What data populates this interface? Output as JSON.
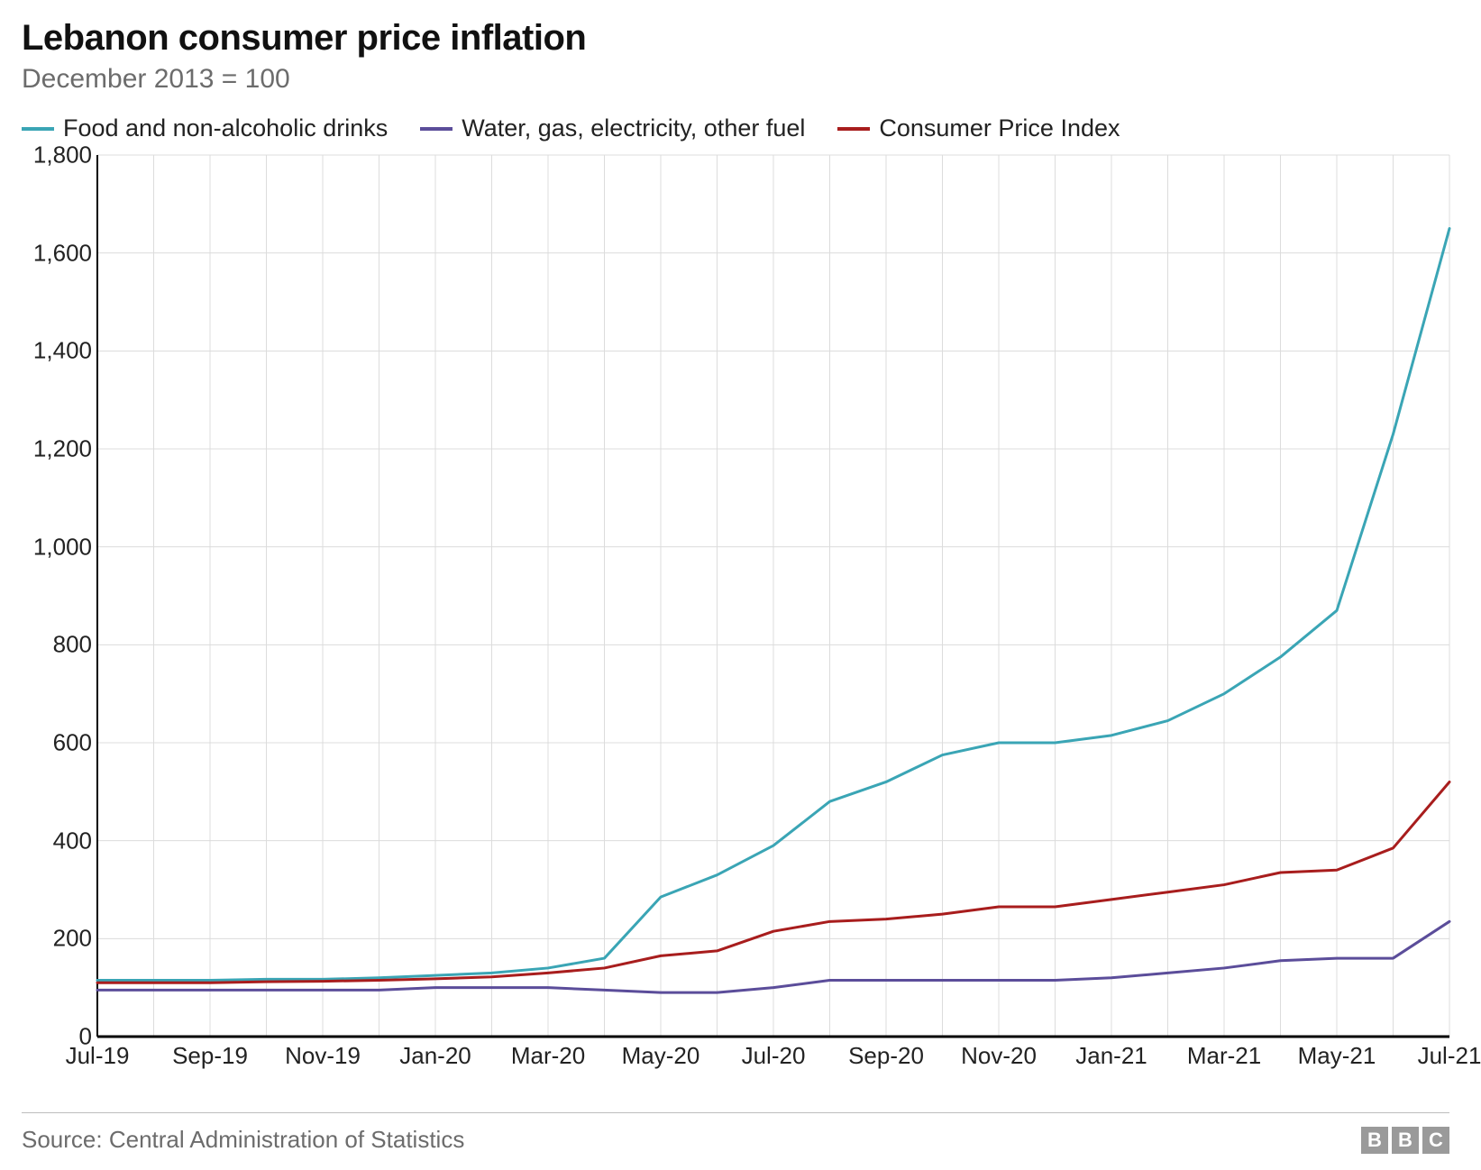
{
  "title": "Lebanon consumer price inflation",
  "subtitle": "December 2013 = 100",
  "source_label": "Source: Central Administration of Statistics",
  "logo_letters": [
    "B",
    "B",
    "C"
  ],
  "chart": {
    "type": "line",
    "background_color": "#ffffff",
    "grid_color": "#dcdcdc",
    "axis_color": "#000000",
    "line_width": 3,
    "y": {
      "min": 0,
      "max": 1800,
      "tick_step": 200,
      "ticks": [
        0,
        200,
        400,
        600,
        800,
        1000,
        1200,
        1400,
        1600,
        1800
      ]
    },
    "x": {
      "min": 0,
      "max": 24,
      "tick_positions": [
        0,
        2,
        4,
        6,
        8,
        10,
        12,
        14,
        16,
        18,
        20,
        22,
        24
      ],
      "tick_labels": [
        "Jul-19",
        "Sep-19",
        "Nov-19",
        "Jan-20",
        "Mar-20",
        "May-20",
        "Jul-20",
        "Sep-20",
        "Nov-20",
        "Jan-21",
        "Mar-21",
        "May-21",
        "Jul-21"
      ]
    },
    "legend": [
      {
        "label": "Food and non-alcoholic drinks",
        "color": "#3aa5b5"
      },
      {
        "label": "Water, gas, electricity, other fuel",
        "color": "#5b4d9a"
      },
      {
        "label": "Consumer Price Index",
        "color": "#a81d1d"
      }
    ],
    "series": [
      {
        "name": "Food and non-alcoholic drinks",
        "color": "#3aa5b5",
        "values": [
          115,
          115,
          115,
          117,
          117,
          120,
          125,
          130,
          140,
          160,
          285,
          330,
          390,
          480,
          520,
          575,
          600,
          600,
          615,
          645,
          700,
          775,
          870,
          1230,
          1650
        ]
      },
      {
        "name": "Water, gas, electricity, other fuel",
        "color": "#5b4d9a",
        "values": [
          95,
          95,
          95,
          95,
          95,
          95,
          100,
          100,
          100,
          95,
          90,
          90,
          100,
          115,
          115,
          115,
          115,
          115,
          120,
          130,
          140,
          155,
          160,
          160,
          235
        ]
      },
      {
        "name": "Consumer Price Index",
        "color": "#a81d1d",
        "values": [
          110,
          110,
          110,
          112,
          113,
          115,
          118,
          122,
          130,
          140,
          165,
          175,
          215,
          235,
          240,
          250,
          265,
          265,
          280,
          295,
          310,
          335,
          340,
          385,
          520
        ]
      }
    ]
  }
}
